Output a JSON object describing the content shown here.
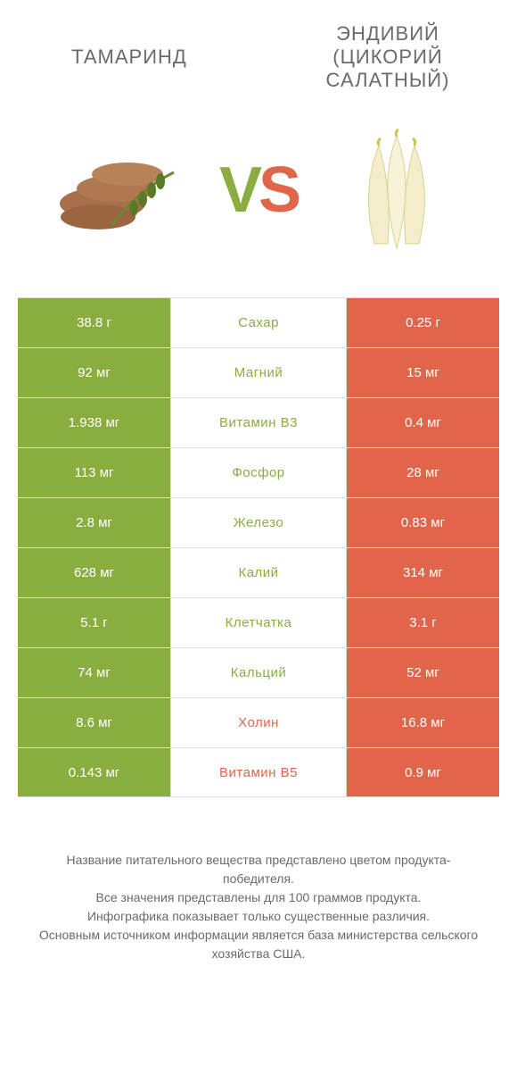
{
  "header": {
    "left": "Тамаринд",
    "right_line1": "Эндивий",
    "right_line2": "(Цикорий",
    "right_line3": "салатный)"
  },
  "vs": {
    "v": "V",
    "s": "S"
  },
  "colors": {
    "left": "#8aad3f",
    "right": "#e1654a",
    "border": "#dddddd",
    "text_label_left": "#8aad3f",
    "text_label_right": "#e1654a"
  },
  "rows": [
    {
      "left": "38.8 г",
      "label": "Сахар",
      "right": "0.25 г",
      "winner": "left"
    },
    {
      "left": "92 мг",
      "label": "Магний",
      "right": "15 мг",
      "winner": "left"
    },
    {
      "left": "1.938 мг",
      "label": "Витамин B3",
      "right": "0.4 мг",
      "winner": "left"
    },
    {
      "left": "113 мг",
      "label": "Фосфор",
      "right": "28 мг",
      "winner": "left"
    },
    {
      "left": "2.8 мг",
      "label": "Железо",
      "right": "0.83 мг",
      "winner": "left"
    },
    {
      "left": "628 мг",
      "label": "Калий",
      "right": "314 мг",
      "winner": "left"
    },
    {
      "left": "5.1 г",
      "label": "Клетчатка",
      "right": "3.1 г",
      "winner": "left"
    },
    {
      "left": "74 мг",
      "label": "Кальций",
      "right": "52 мг",
      "winner": "left"
    },
    {
      "left": "8.6 мг",
      "label": "Холин",
      "right": "16.8 мг",
      "winner": "right"
    },
    {
      "left": "0.143 мг",
      "label": "Витамин B5",
      "right": "0.9 мг",
      "winner": "right"
    }
  ],
  "footer": {
    "l1": "Название питательного вещества представлено цветом продукта-победителя.",
    "l2": "Все значения представлены для 100 граммов продукта.",
    "l3": "Инфографика показывает только существенные различия.",
    "l4": "Основным источником информации является база министерства сельского хозяйства США."
  }
}
